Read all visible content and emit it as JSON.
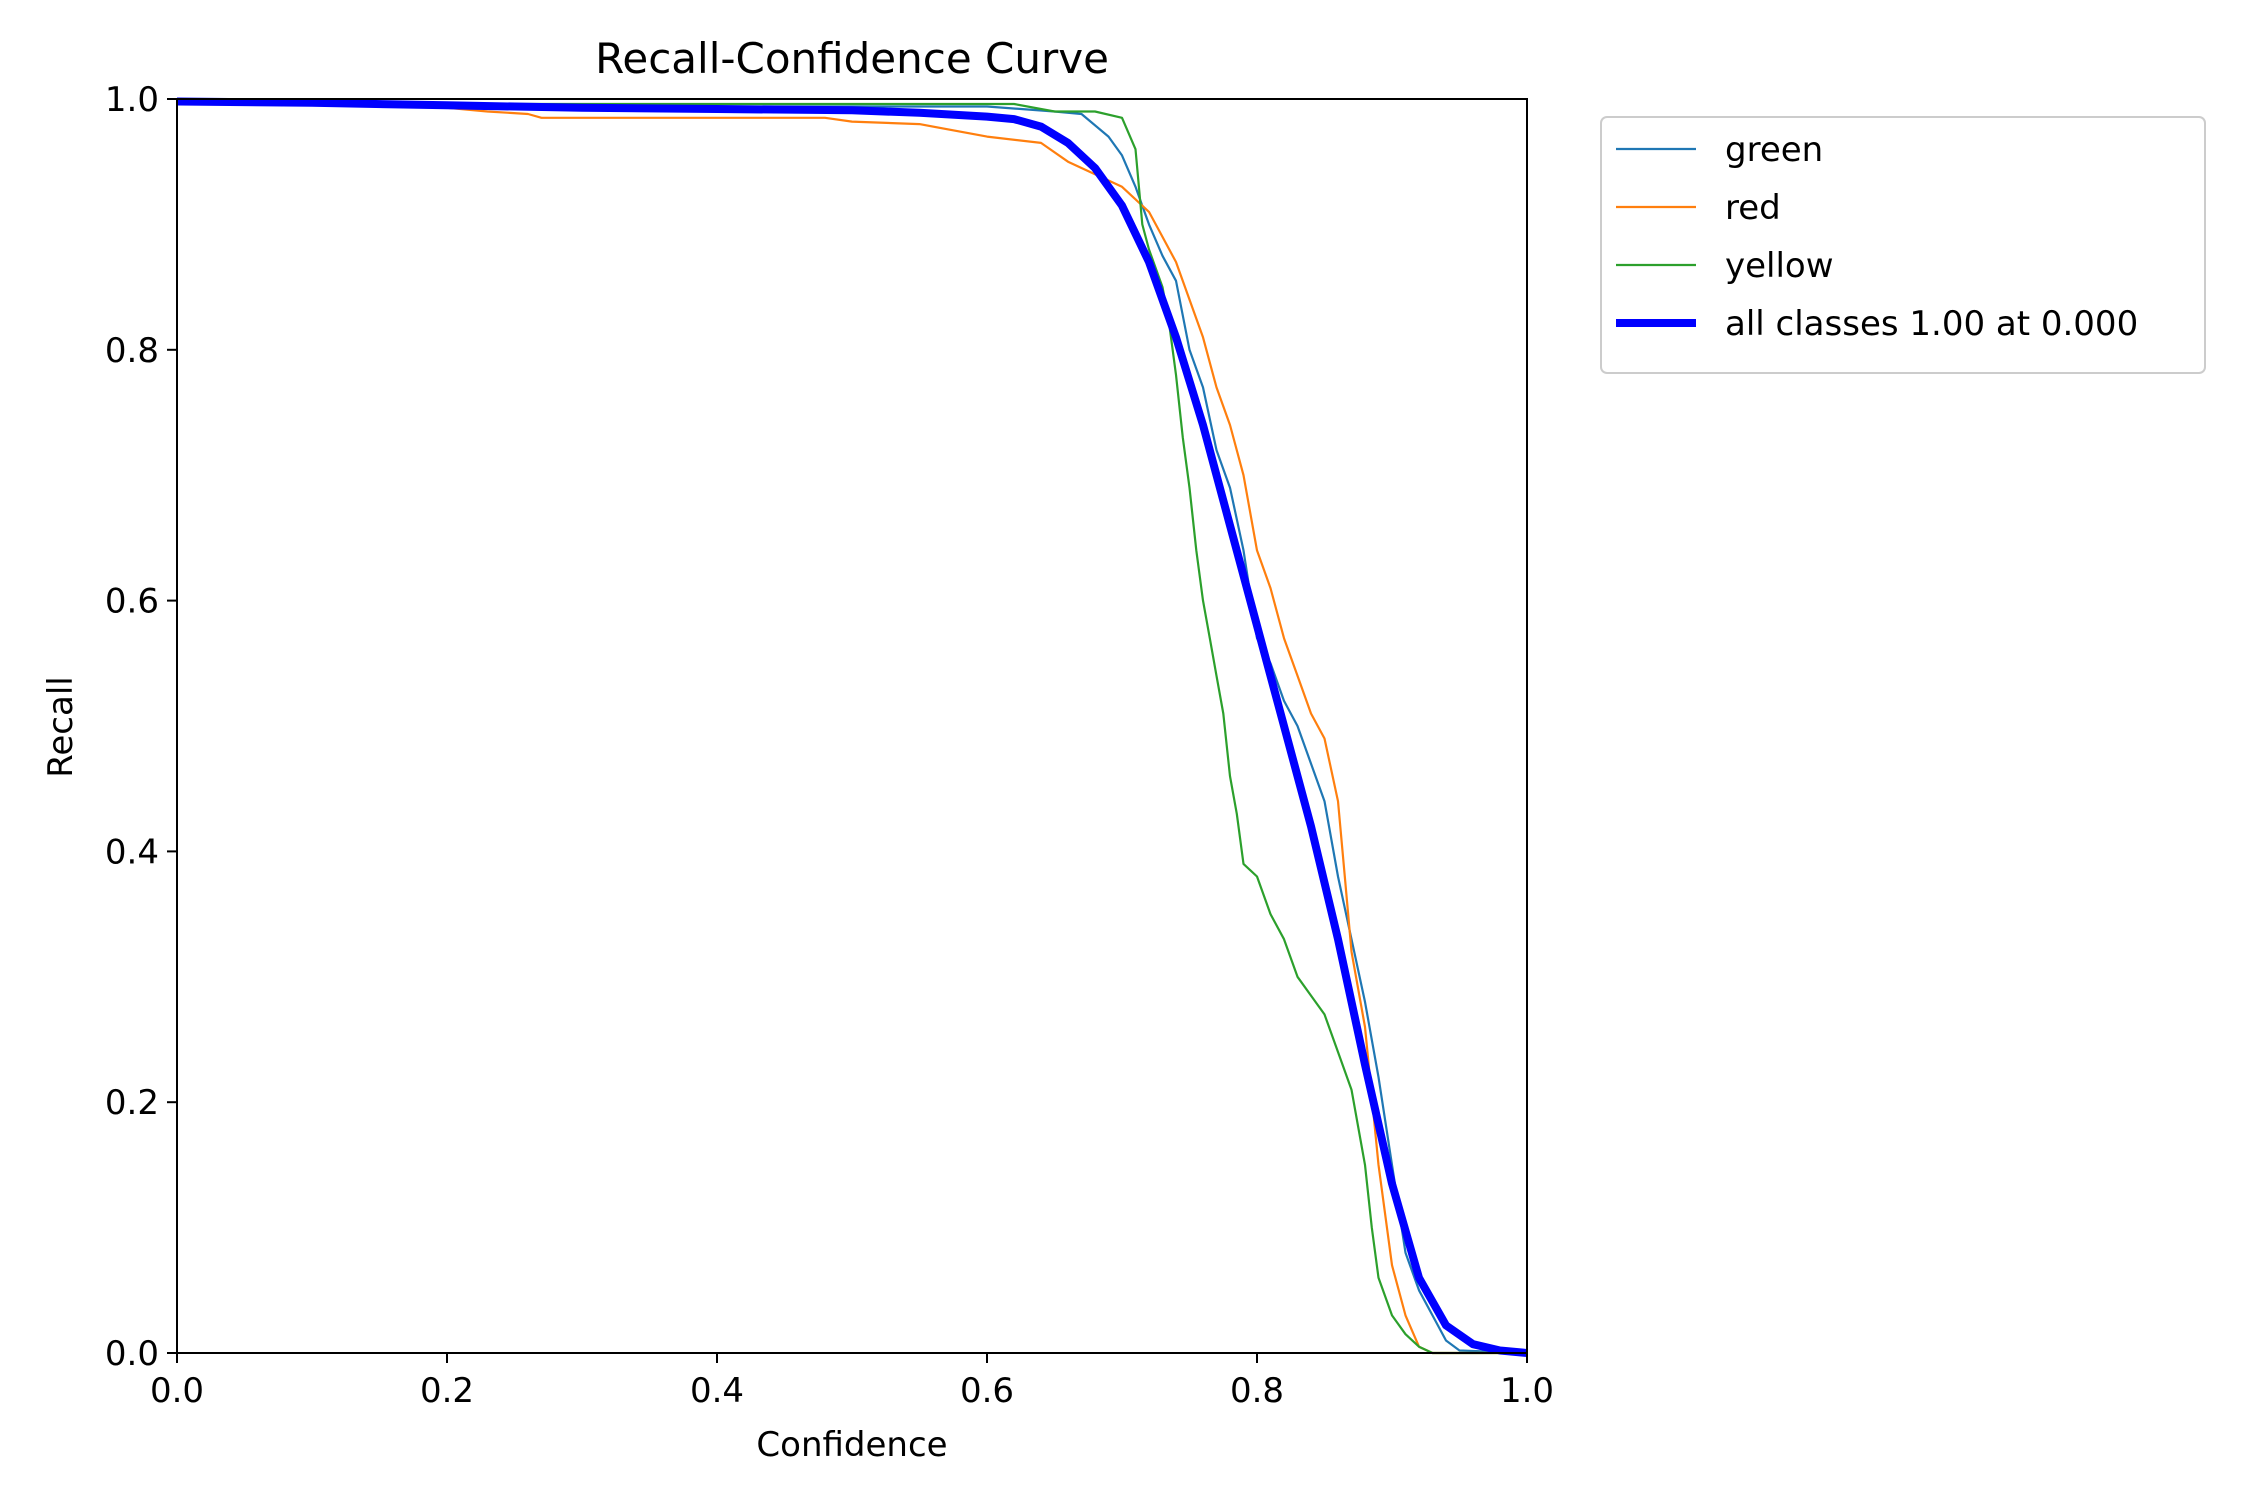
{
  "colors": {
    "green": "#1f77b4",
    "red": "#ff7f0e",
    "yellow": "#2ca02c",
    "all_classes": "#0000ff",
    "axes": "#000000",
    "legend_border": "#cccccc"
  },
  "chart_data": {
    "type": "line",
    "title": "Recall-Confidence Curve",
    "xlabel": "Confidence",
    "ylabel": "Recall",
    "xlim": [
      0,
      1
    ],
    "ylim": [
      0,
      1
    ],
    "xticks": [
      "0.0",
      "0.2",
      "0.4",
      "0.6",
      "0.8",
      "1.0"
    ],
    "yticks": [
      "0.0",
      "0.2",
      "0.4",
      "0.6",
      "0.8",
      "1.0"
    ],
    "grid": false,
    "legend_position": "outside-top-right",
    "series": [
      {
        "name": "green",
        "color": "#1f77b4",
        "points": [
          [
            0,
            0.997
          ],
          [
            0.1,
            0.996
          ],
          [
            0.2,
            0.994
          ],
          [
            0.3,
            0.994
          ],
          [
            0.4,
            0.994
          ],
          [
            0.5,
            0.994
          ],
          [
            0.6,
            0.994
          ],
          [
            0.65,
            0.99
          ],
          [
            0.67,
            0.988
          ],
          [
            0.69,
            0.97
          ],
          [
            0.7,
            0.955
          ],
          [
            0.71,
            0.93
          ],
          [
            0.72,
            0.9
          ],
          [
            0.73,
            0.875
          ],
          [
            0.74,
            0.855
          ],
          [
            0.75,
            0.8
          ],
          [
            0.76,
            0.77
          ],
          [
            0.77,
            0.72
          ],
          [
            0.78,
            0.69
          ],
          [
            0.79,
            0.64
          ],
          [
            0.8,
            0.57
          ],
          [
            0.81,
            0.55
          ],
          [
            0.82,
            0.52
          ],
          [
            0.83,
            0.5
          ],
          [
            0.84,
            0.47
          ],
          [
            0.85,
            0.44
          ],
          [
            0.86,
            0.38
          ],
          [
            0.87,
            0.33
          ],
          [
            0.88,
            0.28
          ],
          [
            0.89,
            0.22
          ],
          [
            0.9,
            0.15
          ],
          [
            0.91,
            0.08
          ],
          [
            0.92,
            0.05
          ],
          [
            0.93,
            0.03
          ],
          [
            0.94,
            0.01
          ],
          [
            0.95,
            0.002
          ],
          [
            1.0,
            0.0
          ]
        ]
      },
      {
        "name": "red",
        "color": "#ff7f0e",
        "points": [
          [
            0,
            0.997
          ],
          [
            0.1,
            0.996
          ],
          [
            0.2,
            0.993
          ],
          [
            0.23,
            0.99
          ],
          [
            0.26,
            0.988
          ],
          [
            0.27,
            0.985
          ],
          [
            0.3,
            0.985
          ],
          [
            0.4,
            0.985
          ],
          [
            0.48,
            0.985
          ],
          [
            0.5,
            0.982
          ],
          [
            0.55,
            0.98
          ],
          [
            0.6,
            0.97
          ],
          [
            0.64,
            0.965
          ],
          [
            0.66,
            0.95
          ],
          [
            0.68,
            0.94
          ],
          [
            0.7,
            0.93
          ],
          [
            0.72,
            0.91
          ],
          [
            0.73,
            0.89
          ],
          [
            0.74,
            0.87
          ],
          [
            0.75,
            0.84
          ],
          [
            0.76,
            0.81
          ],
          [
            0.77,
            0.77
          ],
          [
            0.78,
            0.74
          ],
          [
            0.79,
            0.7
          ],
          [
            0.8,
            0.64
          ],
          [
            0.81,
            0.61
          ],
          [
            0.82,
            0.57
          ],
          [
            0.83,
            0.54
          ],
          [
            0.84,
            0.51
          ],
          [
            0.85,
            0.49
          ],
          [
            0.86,
            0.44
          ],
          [
            0.865,
            0.38
          ],
          [
            0.87,
            0.32
          ],
          [
            0.88,
            0.26
          ],
          [
            0.89,
            0.15
          ],
          [
            0.9,
            0.07
          ],
          [
            0.91,
            0.03
          ],
          [
            0.92,
            0.005
          ],
          [
            0.93,
            0.0
          ],
          [
            1.0,
            0.0
          ]
        ]
      },
      {
        "name": "yellow",
        "color": "#2ca02c",
        "points": [
          [
            0,
            0.998
          ],
          [
            0.1,
            0.997
          ],
          [
            0.2,
            0.996
          ],
          [
            0.3,
            0.996
          ],
          [
            0.4,
            0.996
          ],
          [
            0.5,
            0.996
          ],
          [
            0.6,
            0.996
          ],
          [
            0.62,
            0.996
          ],
          [
            0.65,
            0.99
          ],
          [
            0.68,
            0.99
          ],
          [
            0.7,
            0.985
          ],
          [
            0.71,
            0.96
          ],
          [
            0.715,
            0.9
          ],
          [
            0.72,
            0.88
          ],
          [
            0.73,
            0.85
          ],
          [
            0.735,
            0.82
          ],
          [
            0.74,
            0.78
          ],
          [
            0.745,
            0.73
          ],
          [
            0.75,
            0.69
          ],
          [
            0.755,
            0.64
          ],
          [
            0.76,
            0.6
          ],
          [
            0.765,
            0.57
          ],
          [
            0.77,
            0.54
          ],
          [
            0.775,
            0.51
          ],
          [
            0.78,
            0.46
          ],
          [
            0.785,
            0.43
          ],
          [
            0.79,
            0.39
          ],
          [
            0.8,
            0.38
          ],
          [
            0.81,
            0.35
          ],
          [
            0.82,
            0.33
          ],
          [
            0.83,
            0.3
          ],
          [
            0.84,
            0.285
          ],
          [
            0.85,
            0.27
          ],
          [
            0.86,
            0.24
          ],
          [
            0.87,
            0.21
          ],
          [
            0.88,
            0.15
          ],
          [
            0.885,
            0.1
          ],
          [
            0.89,
            0.06
          ],
          [
            0.9,
            0.03
          ],
          [
            0.91,
            0.015
          ],
          [
            0.92,
            0.005
          ],
          [
            0.93,
            0.0
          ],
          [
            1.0,
            0.0
          ]
        ]
      },
      {
        "name": "all classes 1.00 at 0.000",
        "color": "#0000ff",
        "bold": true,
        "points": [
          [
            0,
            0.998
          ],
          [
            0.1,
            0.997
          ],
          [
            0.2,
            0.995
          ],
          [
            0.3,
            0.993
          ],
          [
            0.4,
            0.992
          ],
          [
            0.5,
            0.991
          ],
          [
            0.55,
            0.989
          ],
          [
            0.6,
            0.986
          ],
          [
            0.62,
            0.984
          ],
          [
            0.64,
            0.978
          ],
          [
            0.66,
            0.965
          ],
          [
            0.68,
            0.945
          ],
          [
            0.7,
            0.915
          ],
          [
            0.72,
            0.87
          ],
          [
            0.74,
            0.81
          ],
          [
            0.76,
            0.74
          ],
          [
            0.78,
            0.66
          ],
          [
            0.8,
            0.58
          ],
          [
            0.82,
            0.5
          ],
          [
            0.84,
            0.42
          ],
          [
            0.86,
            0.33
          ],
          [
            0.88,
            0.23
          ],
          [
            0.9,
            0.135
          ],
          [
            0.92,
            0.06
          ],
          [
            0.94,
            0.022
          ],
          [
            0.96,
            0.007
          ],
          [
            0.98,
            0.002
          ],
          [
            1.0,
            0.0
          ]
        ]
      }
    ]
  }
}
